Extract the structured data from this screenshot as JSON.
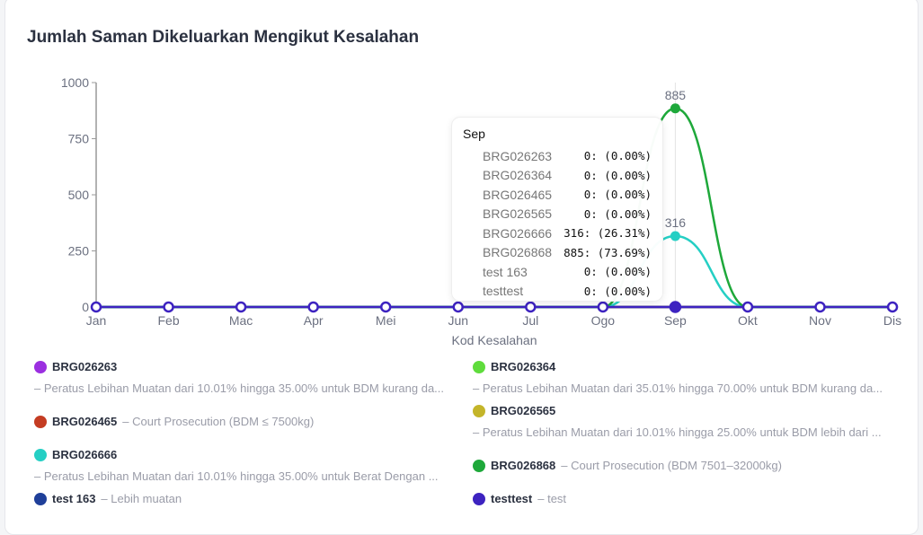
{
  "title": "Jumlah Saman Dikeluarkan Mengikut Kesalahan",
  "chart_data": {
    "type": "line",
    "title": "Jumlah Saman Dikeluarkan Mengikut Kesalahan",
    "xlabel": "Kod Kesalahan",
    "ylabel": "",
    "ylim": [
      0,
      1000
    ],
    "yticks": [
      "0",
      "250",
      "500",
      "750",
      "1000"
    ],
    "categories": [
      "Jan",
      "Feb",
      "Mac",
      "Apr",
      "Mei",
      "Jun",
      "Jul",
      "Ogo",
      "Sep",
      "Okt",
      "Nov",
      "Dis"
    ],
    "series": [
      {
        "name": "BRG026263",
        "desc": "– Peratus Lebihan Muatan dari 10.01% hingga 35.00% untuk BDM kurang da...",
        "color": "#9b2fe0",
        "values": [
          0,
          0,
          0,
          0,
          0,
          0,
          0,
          0,
          0,
          0,
          0,
          0
        ]
      },
      {
        "name": "BRG026364",
        "desc": "– Peratus Lebihan Muatan dari 35.01% hingga 70.00% untuk BDM kurang da...",
        "color": "#5fdc3c",
        "values": [
          0,
          0,
          0,
          0,
          0,
          0,
          0,
          0,
          0,
          0,
          0,
          0
        ]
      },
      {
        "name": "BRG026465",
        "desc": "– Court Prosecution (BDM ≤ 7500kg)",
        "color": "#c43c22",
        "values": [
          0,
          0,
          0,
          0,
          0,
          0,
          0,
          0,
          0,
          0,
          0,
          0
        ]
      },
      {
        "name": "BRG026565",
        "desc": "– Peratus Lebihan Muatan dari 10.01% hingga 25.00% untuk BDM lebih dari ...",
        "color": "#c4b52a",
        "values": [
          0,
          0,
          0,
          0,
          0,
          0,
          0,
          0,
          0,
          0,
          0,
          0
        ]
      },
      {
        "name": "BRG026666",
        "desc": "– Peratus Lebihan Muatan dari 10.01% hingga 35.00% untuk Berat Dengan ...",
        "color": "#25cfc4",
        "values": [
          0,
          0,
          0,
          0,
          0,
          0,
          0,
          0,
          316,
          0,
          0,
          0
        ]
      },
      {
        "name": "BRG026868",
        "desc": "– Court Prosecution (BDM 7501–32000kg)",
        "color": "#1ea83a",
        "values": [
          0,
          0,
          0,
          0,
          0,
          0,
          0,
          0,
          885,
          0,
          0,
          0
        ]
      },
      {
        "name": "test 163",
        "desc": "– Lebih muatan",
        "color": "#1f3f99",
        "values": [
          0,
          0,
          0,
          0,
          0,
          0,
          0,
          0,
          0,
          0,
          0,
          0
        ]
      },
      {
        "name": "testtest",
        "desc": "– test",
        "color": "#3d23c0",
        "values": [
          0,
          0,
          0,
          0,
          0,
          0,
          0,
          0,
          0,
          0,
          0,
          0
        ]
      }
    ],
    "data_labels": [
      "885",
      "316"
    ]
  },
  "tooltip": {
    "title": "Sep",
    "rows": [
      {
        "name": "BRG026263",
        "value": "0: (0.00%)"
      },
      {
        "name": "BRG026364",
        "value": "0: (0.00%)"
      },
      {
        "name": "BRG026465",
        "value": "0: (0.00%)"
      },
      {
        "name": "BRG026565",
        "value": "0: (0.00%)"
      },
      {
        "name": "BRG026666",
        "value": "316: (26.31%)"
      },
      {
        "name": "BRG026868",
        "value": "885: (73.69%)"
      },
      {
        "name": "test 163",
        "value": "0: (0.00%)"
      },
      {
        "name": "testtest",
        "value": "0: (0.00%)"
      }
    ]
  }
}
